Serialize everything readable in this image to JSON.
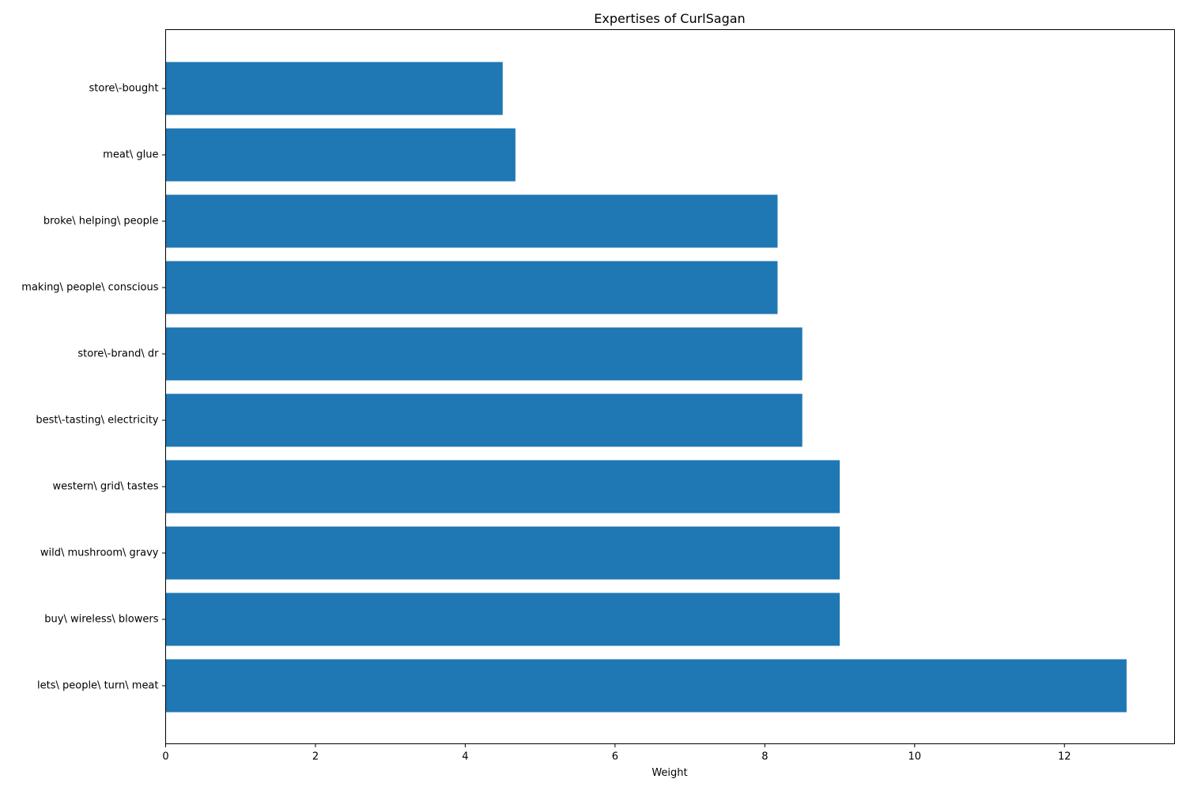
{
  "chart_data": {
    "type": "bar",
    "orientation": "horizontal",
    "title": "Expertises of CurlSagan",
    "xlabel": "Weight",
    "ylabel": "",
    "categories": [
      "store\\-bought",
      "meat\\ glue",
      "broke\\ helping\\ people",
      "making\\ people\\ conscious",
      "store\\-brand\\ dr",
      "best\\-tasting\\ electricity",
      "western\\ grid\\ tastes",
      "wild\\ mushroom\\ gravy",
      "buy\\ wireless\\ blowers",
      "lets\\ people\\ turn\\ meat"
    ],
    "values": [
      4.5,
      4.67,
      8.17,
      8.17,
      8.5,
      8.5,
      9.0,
      9.0,
      9.0,
      12.83
    ],
    "xlim": [
      0,
      13.47
    ],
    "xticks": [
      "0",
      "2",
      "4",
      "6",
      "8",
      "10",
      "12"
    ],
    "grid": false,
    "bar_color": "#1f77b4"
  }
}
